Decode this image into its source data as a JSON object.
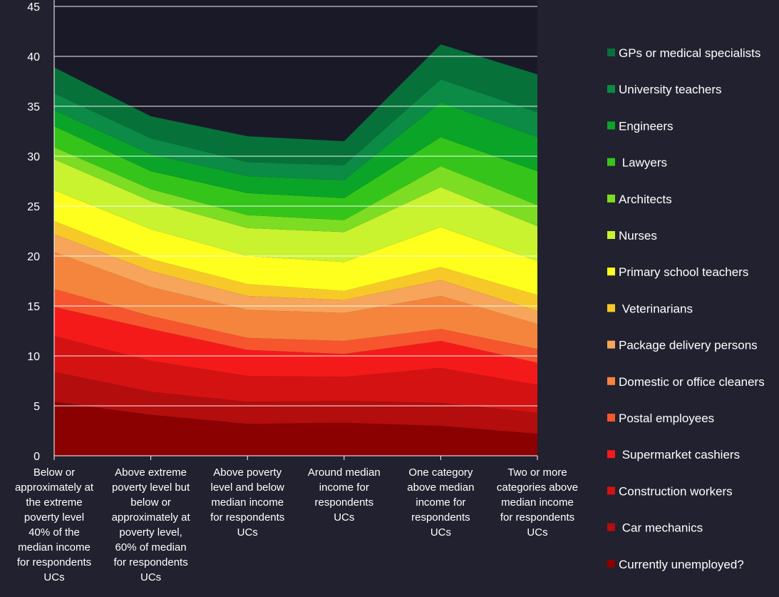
{
  "chart_data": {
    "type": "area",
    "stacked": true,
    "title": "",
    "xlabel": "",
    "ylabel": "",
    "ylim": [
      0,
      45
    ],
    "yticks": [
      "0",
      "5",
      "10",
      "15",
      "20",
      "25",
      "30",
      "35",
      "40",
      "45"
    ],
    "grid": true,
    "legend_position": "right",
    "categories": [
      "Below or approximately at the extreme poverty level 40% of the median income for respondents UCs",
      "Above extreme poverty level but below or approximately at poverty level, 60% of median for respondents UCs",
      "Above poverty level and below median income for respondents UCs",
      "Around median income for respondents UCs",
      "One category above median income for respondents UCs",
      "Two or more categories above median income for respondents UCs"
    ],
    "category_label_lines": [
      [
        "Below or",
        "approximately at",
        "the extreme",
        "poverty level",
        "40% of the",
        "median income",
        "for respondents",
        "UCs"
      ],
      [
        "Above extreme",
        "poverty level but",
        "below or",
        "approximately at",
        "poverty level,",
        "60% of median",
        "for respondents",
        "UCs"
      ],
      [
        "Above poverty",
        "level and below",
        "median income",
        "for respondents",
        "UCs"
      ],
      [
        "Around median",
        "income for",
        "respondents",
        "UCs"
      ],
      [
        "One category",
        "above median",
        "income for",
        "respondents",
        "UCs"
      ],
      [
        "Two or more",
        "categories above",
        "median income",
        "for respondents",
        "UCs"
      ]
    ],
    "series": [
      {
        "name": "Currently unemployed?",
        "color": "#8b0000",
        "values": [
          5.4,
          4.1,
          3.2,
          3.3,
          3.0,
          2.2
        ]
      },
      {
        "name": " Car mechanics",
        "color": "#b30d0d",
        "values": [
          3.0,
          2.3,
          2.2,
          2.2,
          2.3,
          2.1
        ]
      },
      {
        "name": "Construction workers",
        "color": "#d41212",
        "values": [
          3.6,
          3.1,
          2.6,
          2.4,
          3.5,
          2.8
        ]
      },
      {
        "name": " Supermarket cashiers",
        "color": "#f51a1a",
        "values": [
          2.9,
          3.2,
          2.6,
          2.3,
          2.7,
          2.2
        ]
      },
      {
        "name": "Postal employees",
        "color": "#f7552e",
        "values": [
          1.8,
          1.3,
          1.2,
          1.3,
          1.2,
          1.4
        ]
      },
      {
        "name": "Domestic or office cleaners",
        "color": "#f5853c",
        "values": [
          3.7,
          2.9,
          2.8,
          2.8,
          3.3,
          2.5
        ]
      },
      {
        "name": "Package delivery persons",
        "color": "#f7a55a",
        "values": [
          1.8,
          1.6,
          1.4,
          1.3,
          1.6,
          1.3
        ]
      },
      {
        "name": " Veterinarians",
        "color": "#f7c928",
        "values": [
          1.3,
          1.2,
          1.2,
          0.9,
          1.3,
          1.6
        ]
      },
      {
        "name": "Primary school teachers",
        "color": "#ffff1e",
        "values": [
          3.1,
          3.0,
          2.8,
          2.9,
          4.0,
          3.4
        ]
      },
      {
        "name": "Nurses",
        "color": "#c9f22f",
        "values": [
          3.1,
          2.8,
          2.8,
          3.0,
          4.0,
          3.5
        ]
      },
      {
        "name": "Architects",
        "color": "#7cdd23",
        "values": [
          1.2,
          1.2,
          1.3,
          1.2,
          2.1,
          2.1
        ]
      },
      {
        "name": " Lawyers",
        "color": "#35c51a",
        "values": [
          2.1,
          1.8,
          2.2,
          2.2,
          2.9,
          3.4
        ]
      },
      {
        "name": "Engineers",
        "color": "#0aa428",
        "values": [
          1.6,
          1.7,
          1.7,
          1.8,
          3.5,
          3.4
        ]
      },
      {
        "name": "University teachers",
        "color": "#0b8b45",
        "values": [
          1.7,
          1.6,
          1.4,
          1.5,
          2.3,
          2.5
        ]
      },
      {
        "name": "GPs or medical specialists",
        "color": "#07713a",
        "values": [
          2.6,
          2.2,
          2.6,
          2.4,
          3.5,
          3.8
        ]
      }
    ]
  }
}
